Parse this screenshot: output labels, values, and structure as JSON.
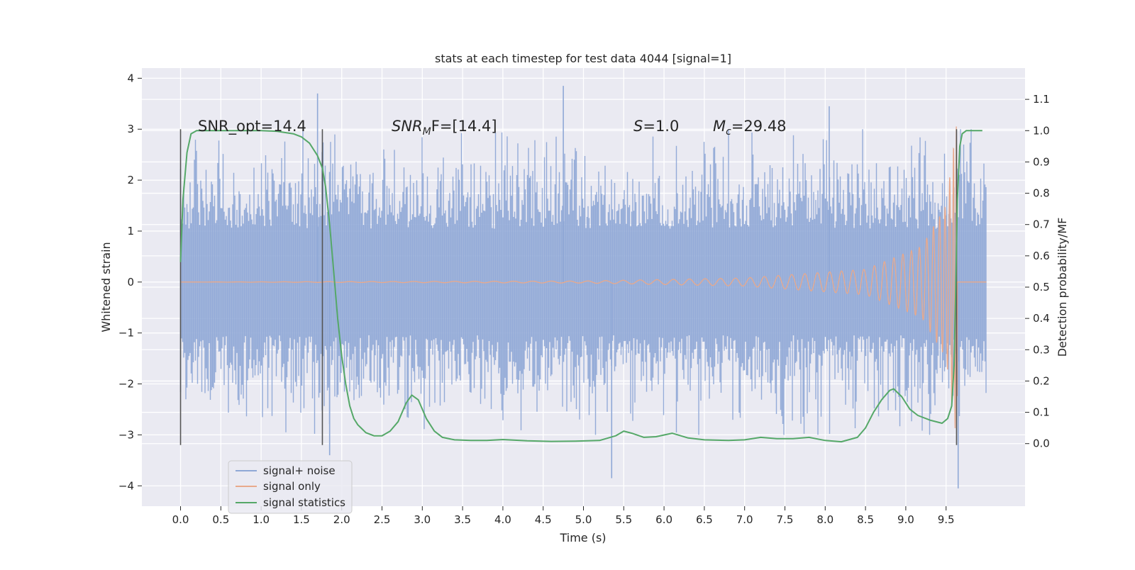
{
  "chart_data": {
    "type": "line",
    "title": "stats at each timestep for test data 4044 [signal=1]",
    "xlabel": "Time (s)",
    "ylabel": "Whitened strain",
    "ylabel_right": "Detection probability/MF",
    "xlim": [
      -0.48,
      10.48
    ],
    "ylim": [
      -4.4,
      4.2
    ],
    "ylim_right": [
      -0.2,
      1.2
    ],
    "x_ticks": [
      "0.0",
      "0.5",
      "1.0",
      "1.5",
      "2.0",
      "2.5",
      "3.0",
      "3.5",
      "4.0",
      "4.5",
      "5.0",
      "5.5",
      "6.0",
      "6.5",
      "7.0",
      "7.5",
      "8.0",
      "8.5",
      "9.0",
      "9.5"
    ],
    "y_ticks": [
      "−4",
      "−3",
      "−2",
      "−1",
      "0",
      "1",
      "2",
      "3",
      "4"
    ],
    "y_ticks_right": [
      "0.0",
      "0.1",
      "0.2",
      "0.3",
      "0.4",
      "0.5",
      "0.6",
      "0.7",
      "0.8",
      "0.9",
      "1.0",
      "1.1"
    ],
    "grid": true,
    "legend_position": "lower-left",
    "annotations": {
      "snr_opt": "SNR_opt=14.4",
      "snr_mf_main": "SNR",
      "snr_mf_sub": "M",
      "snr_mf_rest": "F=[14.4]",
      "s_main": "S",
      "s_rest": "=1.0",
      "mc_main": "M",
      "mc_sub": "c",
      "mc_rest": "=29.48"
    },
    "markers": [
      0.0,
      1.76,
      9.63
    ],
    "series": [
      {
        "name": "signal+ noise",
        "color": "#8fa8d6",
        "x_range": [
          0.0,
          10.0
        ],
        "typical_abs_amplitude": 1.9,
        "notable_peaks": [
          {
            "x": 1.7,
            "y": 3.7
          },
          {
            "x": 4.75,
            "y": 3.85
          },
          {
            "x": 8.05,
            "y": 3.45
          },
          {
            "x": 1.85,
            "y": -3.4
          },
          {
            "x": 5.35,
            "y": -3.85
          },
          {
            "x": 9.65,
            "y": -4.05
          }
        ]
      },
      {
        "name": "signal only",
        "color": "#dd8452",
        "description_points": [
          {
            "x": 0.0,
            "amplitude": 0.0
          },
          {
            "x": 5.0,
            "amplitude": 0.02
          },
          {
            "x": 7.0,
            "amplitude": 0.08
          },
          {
            "x": 8.5,
            "amplitude": 0.25
          },
          {
            "x": 9.2,
            "amplitude": 0.7
          },
          {
            "x": 9.5,
            "amplitude": 1.5
          },
          {
            "x": 9.63,
            "amplitude": 3.1
          },
          {
            "x": 9.66,
            "amplitude": 0.0
          }
        ]
      },
      {
        "name": "signal statistics",
        "color": "#55a868",
        "axis": "right",
        "x": [
          0.0,
          0.03,
          0.08,
          0.13,
          0.2,
          0.3,
          0.5,
          0.8,
          1.0,
          1.2,
          1.4,
          1.5,
          1.6,
          1.7,
          1.76,
          1.8,
          1.85,
          1.9,
          1.95,
          2.0,
          2.05,
          2.1,
          2.15,
          2.2,
          2.3,
          2.4,
          2.5,
          2.6,
          2.7,
          2.8,
          2.87,
          2.95,
          3.05,
          3.15,
          3.25,
          3.4,
          3.6,
          3.8,
          4.0,
          4.3,
          4.6,
          4.9,
          5.2,
          5.4,
          5.5,
          5.6,
          5.75,
          5.9,
          6.1,
          6.3,
          6.5,
          6.8,
          7.0,
          7.2,
          7.4,
          7.6,
          7.8,
          8.0,
          8.2,
          8.4,
          8.5,
          8.6,
          8.7,
          8.8,
          8.85,
          8.95,
          9.05,
          9.15,
          9.3,
          9.45,
          9.52,
          9.57,
          9.6,
          9.62,
          9.64,
          9.67,
          9.7,
          9.75,
          9.85,
          9.95
        ],
        "y": [
          0.58,
          0.78,
          0.93,
          0.99,
          1.0,
          1.0,
          1.0,
          1.0,
          1.0,
          0.998,
          0.99,
          0.98,
          0.96,
          0.92,
          0.88,
          0.82,
          0.7,
          0.55,
          0.4,
          0.28,
          0.19,
          0.12,
          0.08,
          0.06,
          0.035,
          0.025,
          0.025,
          0.04,
          0.07,
          0.13,
          0.155,
          0.14,
          0.08,
          0.04,
          0.02,
          0.012,
          0.01,
          0.01,
          0.013,
          0.009,
          0.007,
          0.008,
          0.01,
          0.025,
          0.04,
          0.033,
          0.02,
          0.022,
          0.033,
          0.018,
          0.012,
          0.01,
          0.012,
          0.02,
          0.016,
          0.016,
          0.02,
          0.01,
          0.006,
          0.02,
          0.05,
          0.1,
          0.14,
          0.17,
          0.175,
          0.15,
          0.11,
          0.09,
          0.075,
          0.065,
          0.08,
          0.12,
          0.25,
          0.5,
          0.78,
          0.95,
          0.99,
          1.0,
          1.0,
          1.0
        ]
      }
    ]
  }
}
